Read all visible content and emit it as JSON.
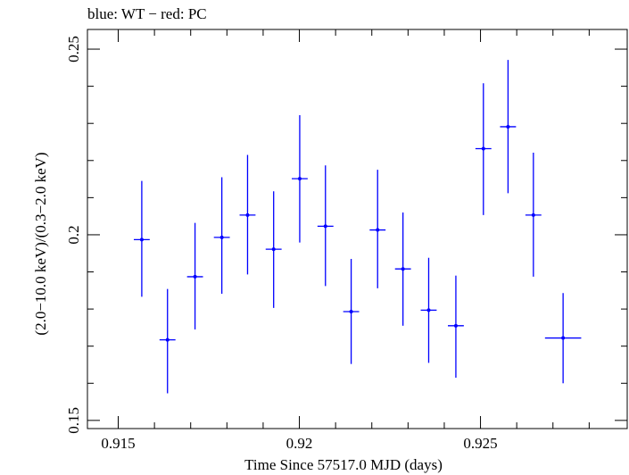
{
  "chart_data": {
    "type": "scatter",
    "title": "blue: WT − red: PC",
    "xlabel": "Time Since 57517.0 MJD (days)",
    "ylabel": "(2.0−10.0 keV)/(0.3−2.0 keV)",
    "xlim": [
      0.91415,
      0.92905
    ],
    "ylim": [
      0.1478,
      0.2553
    ],
    "x_ticks": [
      {
        "value": 0.915,
        "label": "0.915"
      },
      {
        "value": 0.92,
        "label": "0.92"
      },
      {
        "value": 0.925,
        "label": "0.925"
      }
    ],
    "y_ticks": [
      {
        "value": 0.15,
        "label": "0.15"
      },
      {
        "value": 0.2,
        "label": "0.2"
      },
      {
        "value": 0.25,
        "label": "0.25"
      }
    ],
    "grid": false,
    "colors": {
      "series": "#0000ff",
      "axis": "#000000"
    },
    "series": [
      {
        "points": [
          {
            "x": 0.91565,
            "xerr": 0.00022,
            "y": 0.1987,
            "ylo": 0.1833,
            "yhi": 0.2145
          },
          {
            "x": 0.91636,
            "xerr": 0.00022,
            "y": 0.1717,
            "ylo": 0.1573,
            "yhi": 0.1854
          },
          {
            "x": 0.91712,
            "xerr": 0.00022,
            "y": 0.1887,
            "ylo": 0.1745,
            "yhi": 0.2032
          },
          {
            "x": 0.91786,
            "xerr": 0.00022,
            "y": 0.1993,
            "ylo": 0.1841,
            "yhi": 0.2155
          },
          {
            "x": 0.91857,
            "xerr": 0.00022,
            "y": 0.2053,
            "ylo": 0.1893,
            "yhi": 0.2215
          },
          {
            "x": 0.91929,
            "xerr": 0.00022,
            "y": 0.1961,
            "ylo": 0.1803,
            "yhi": 0.2117
          },
          {
            "x": 0.92001,
            "xerr": 0.00022,
            "y": 0.2151,
            "ylo": 0.1979,
            "yhi": 0.2322
          },
          {
            "x": 0.92072,
            "xerr": 0.00022,
            "y": 0.2023,
            "ylo": 0.1862,
            "yhi": 0.2187
          },
          {
            "x": 0.92143,
            "xerr": 0.00022,
            "y": 0.1793,
            "ylo": 0.1652,
            "yhi": 0.1935
          },
          {
            "x": 0.92216,
            "xerr": 0.00022,
            "y": 0.2013,
            "ylo": 0.1856,
            "yhi": 0.2175
          },
          {
            "x": 0.92286,
            "xerr": 0.00022,
            "y": 0.1908,
            "ylo": 0.1755,
            "yhi": 0.206
          },
          {
            "x": 0.92357,
            "xerr": 0.00022,
            "y": 0.1797,
            "ylo": 0.1655,
            "yhi": 0.1938
          },
          {
            "x": 0.92432,
            "xerr": 0.00022,
            "y": 0.1755,
            "ylo": 0.1615,
            "yhi": 0.189
          },
          {
            "x": 0.92508,
            "xerr": 0.00022,
            "y": 0.2232,
            "ylo": 0.2053,
            "yhi": 0.2408
          },
          {
            "x": 0.92576,
            "xerr": 0.00022,
            "y": 0.2291,
            "ylo": 0.2112,
            "yhi": 0.2471
          },
          {
            "x": 0.92646,
            "xerr": 0.00022,
            "y": 0.2053,
            "ylo": 0.1887,
            "yhi": 0.2221
          },
          {
            "x": 0.92728,
            "xerr": 0.0005,
            "y": 0.1722,
            "ylo": 0.16,
            "yhi": 0.1843
          }
        ]
      }
    ]
  }
}
